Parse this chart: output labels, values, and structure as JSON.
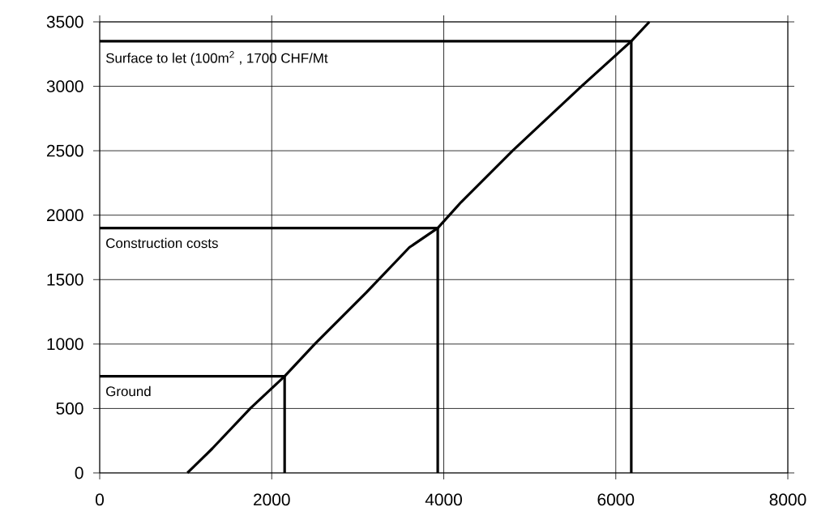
{
  "chart_data": {
    "type": "line",
    "series": [
      {
        "color": "#000000",
        "x": [
          1020,
          1310,
          1750,
          2150,
          2500,
          3100,
          3600,
          3930,
          4200,
          4800,
          5600,
          6180,
          6390
        ],
        "values": [
          0,
          190,
          500,
          750,
          1000,
          1400,
          1750,
          1900,
          2100,
          2500,
          3000,
          3350,
          3500
        ]
      },
      {
        "name": "Ground",
        "color": "#000000",
        "x": [
          0,
          2150,
          2150
        ],
        "values": [
          750,
          750,
          0
        ]
      },
      {
        "name": "Construction costs",
        "color": "#000000",
        "x": [
          0,
          3930,
          3930
        ],
        "values": [
          1900,
          1900,
          0
        ]
      },
      {
        "name": "Surface to let (100m$^{2}$ , 1700 CHF/Mt",
        "color": "#000000",
        "x": [
          0,
          6180,
          6180
        ],
        "values": [
          3350,
          3350,
          0
        ]
      }
    ],
    "xlim": [
      0,
      8000
    ],
    "xticks": [
      0,
      2000,
      4000,
      6000,
      8000
    ],
    "ylim": [
      0,
      3500
    ],
    "yticks": [
      0,
      500,
      1000,
      1500,
      2000,
      2500,
      3000,
      3500
    ],
    "grid": true,
    "legend": false,
    "marker": "none",
    "line_style": "solid"
  }
}
